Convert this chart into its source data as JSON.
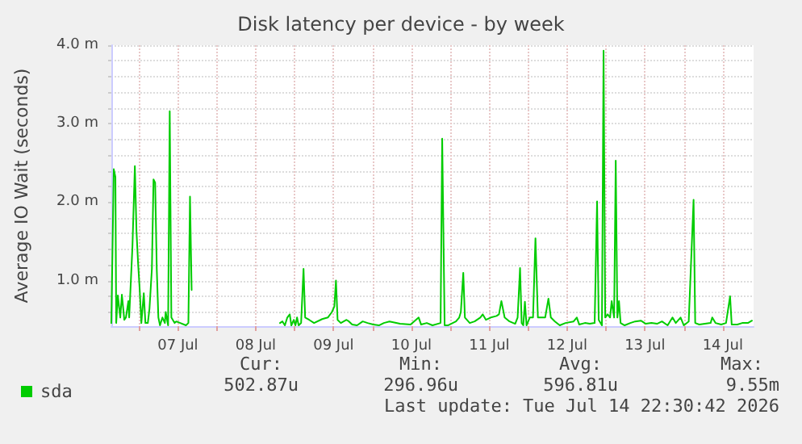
{
  "chart_data": {
    "type": "line",
    "title": "Disk latency per device - by week",
    "ylabel": "Average IO Wait (seconds)",
    "xlim": [
      "2026-07-06T15:30",
      "2026-07-14T21:30"
    ],
    "xticks": [
      {
        "value": "2026-07-07T00:00",
        "label": null
      },
      {
        "value": "2026-07-07T12:00",
        "label": "07 Jul"
      },
      {
        "value": "2026-07-08T00:00",
        "label": null
      },
      {
        "value": "2026-07-08T12:00",
        "label": "08 Jul"
      },
      {
        "value": "2026-07-09T00:00",
        "label": null
      },
      {
        "value": "2026-07-09T12:00",
        "label": "09 Jul"
      },
      {
        "value": "2026-07-10T00:00",
        "label": null
      },
      {
        "value": "2026-07-10T12:00",
        "label": "10 Jul"
      },
      {
        "value": "2026-07-11T00:00",
        "label": null
      },
      {
        "value": "2026-07-11T12:00",
        "label": "11 Jul"
      },
      {
        "value": "2026-07-12T00:00",
        "label": null
      },
      {
        "value": "2026-07-12T12:00",
        "label": "12 Jul"
      },
      {
        "value": "2026-07-13T00:00",
        "label": null
      },
      {
        "value": "2026-07-13T12:00",
        "label": "13 Jul"
      },
      {
        "value": "2026-07-14T00:00",
        "label": null
      },
      {
        "value": "2026-07-14T12:00",
        "label": "14 Jul"
      }
    ],
    "ylim": [
      0.42,
      4.0
    ],
    "yticks": [
      {
        "value": 0.6,
        "label": null
      },
      {
        "value": 0.8,
        "label": null
      },
      {
        "value": 1.0,
        "label": "1.0 m"
      },
      {
        "value": 1.2,
        "label": null
      },
      {
        "value": 1.4,
        "label": null
      },
      {
        "value": 1.6,
        "label": null
      },
      {
        "value": 1.8,
        "label": null
      },
      {
        "value": 2.0,
        "label": "2.0 m"
      },
      {
        "value": 2.2,
        "label": null
      },
      {
        "value": 2.4,
        "label": null
      },
      {
        "value": 2.6,
        "label": null
      },
      {
        "value": 2.8,
        "label": null
      },
      {
        "value": 3.0,
        "label": "3.0 m"
      },
      {
        "value": 3.2,
        "label": null
      },
      {
        "value": 3.4,
        "label": null
      },
      {
        "value": 3.6,
        "label": null
      },
      {
        "value": 3.8,
        "label": null
      },
      {
        "value": 4.0,
        "label": "4.0 m"
      }
    ],
    "grid": true,
    "legend": "bottom left",
    "marker": "none",
    "line_style": "solid",
    "annotations": [
      "Cur:",
      "Min:",
      "Avg:",
      "Max:",
      "502.87u",
      "296.96u",
      "596.81u",
      "9.55m",
      "Last update: Tue Jul 14 22:30:42 2026"
    ],
    "x": [
      "2026-07-06T15:30",
      "2026-07-06T16:15",
      "2026-07-06T16:45",
      "2026-07-06T17:00",
      "2026-07-06T17:30",
      "2026-07-06T18:15",
      "2026-07-06T18:45",
      "2026-07-06T19:30",
      "2026-07-06T20:00",
      "2026-07-06T20:45",
      "2026-07-06T21:00",
      "2026-07-06T22:00",
      "2026-07-06T22:45",
      "2026-07-06T23:15",
      "2026-07-06T23:45",
      "2026-07-07T00:15",
      "2026-07-07T00:45",
      "2026-07-07T01:30",
      "2026-07-07T02:00",
      "2026-07-07T02:45",
      "2026-07-07T03:15",
      "2026-07-07T04:00",
      "2026-07-07T04:30",
      "2026-07-07T05:00",
      "2026-07-07T05:30",
      "2026-07-07T06:00",
      "2026-07-07T06:30",
      "2026-07-07T07:15",
      "2026-07-07T08:00",
      "2026-07-07T08:15",
      "2026-07-07T09:00",
      "2026-07-07T09:30",
      "2026-07-07T10:00",
      "2026-07-07T11:00",
      "2026-07-07T11:30",
      "2026-07-07T12:45",
      "2026-07-07T14:30",
      "2026-07-07T15:15",
      "2026-07-07T15:45",
      "2026-07-07T16:15",
      "2026-07-07T16:30",
      "2026-07-07T17:00",
      "2026-07-08T19:30",
      "2026-07-08T20:15",
      "2026-07-08T21:00",
      "2026-07-08T21:45",
      "2026-07-08T22:30",
      "2026-07-08T23:00",
      "2026-07-08T23:45",
      "2026-07-09T00:15",
      "2026-07-09T00:45",
      "2026-07-09T01:15",
      "2026-07-09T02:00",
      "2026-07-09T02:45",
      "2026-07-09T03:15",
      "2026-07-09T04:30",
      "2026-07-09T06:00",
      "2026-07-09T08:30",
      "2026-07-09T10:15",
      "2026-07-09T11:30",
      "2026-07-09T12:15",
      "2026-07-09T12:45",
      "2026-07-09T13:15",
      "2026-07-09T14:15",
      "2026-07-09T16:00",
      "2026-07-09T16:45",
      "2026-07-09T17:45",
      "2026-07-09T19:15",
      "2026-07-09T21:00",
      "2026-07-09T22:30",
      "2026-07-10T00:15",
      "2026-07-10T02:00",
      "2026-07-10T03:30",
      "2026-07-10T05:15",
      "2026-07-10T08:30",
      "2026-07-10T11:45",
      "2026-07-10T14:15",
      "2026-07-10T15:00",
      "2026-07-10T16:45",
      "2026-07-10T18:30",
      "2026-07-10T21:00",
      "2026-07-10T21:30",
      "2026-07-10T22:15",
      "2026-07-10T23:15",
      "2026-07-11T00:45",
      "2026-07-11T01:45",
      "2026-07-11T02:45",
      "2026-07-11T03:15",
      "2026-07-11T04:00",
      "2026-07-11T04:30",
      "2026-07-11T06:00",
      "2026-07-11T07:30",
      "2026-07-11T09:15",
      "2026-07-11T10:00",
      "2026-07-11T11:00",
      "2026-07-11T12:30",
      "2026-07-11T14:15",
      "2026-07-11T15:00",
      "2026-07-11T15:45",
      "2026-07-11T16:45",
      "2026-07-11T18:15",
      "2026-07-11T20:00",
      "2026-07-11T20:45",
      "2026-07-11T21:30",
      "2026-07-11T22:00",
      "2026-07-11T22:30",
      "2026-07-11T23:00",
      "2026-07-11T23:30",
      "2026-07-12T00:30",
      "2026-07-12T01:30",
      "2026-07-12T02:15",
      "2026-07-12T03:00",
      "2026-07-12T04:15",
      "2026-07-12T05:15",
      "2026-07-12T06:15",
      "2026-07-12T07:00",
      "2026-07-12T08:15",
      "2026-07-12T09:45",
      "2026-07-12T11:30",
      "2026-07-12T14:00",
      "2026-07-12T15:00",
      "2026-07-12T15:45",
      "2026-07-12T17:30",
      "2026-07-12T19:00",
      "2026-07-12T20:30",
      "2026-07-12T21:15",
      "2026-07-12T21:45",
      "2026-07-12T22:45",
      "2026-07-12T23:15",
      "2026-07-12T23:45",
      "2026-07-13T00:30",
      "2026-07-13T01:15",
      "2026-07-13T01:45",
      "2026-07-13T02:30",
      "2026-07-13T03:00",
      "2026-07-13T03:30",
      "2026-07-13T04:00",
      "2026-07-13T04:30",
      "2026-07-13T05:45",
      "2026-07-13T07:30",
      "2026-07-13T09:00",
      "2026-07-13T10:45",
      "2026-07-13T12:15",
      "2026-07-13T14:00",
      "2026-07-13T15:45",
      "2026-07-13T17:15",
      "2026-07-13T19:00",
      "2026-07-13T20:30",
      "2026-07-13T21:30",
      "2026-07-13T23:00",
      "2026-07-14T00:00",
      "2026-07-14T01:30",
      "2026-07-14T03:00",
      "2026-07-14T03:30",
      "2026-07-14T04:45",
      "2026-07-14T06:30",
      "2026-07-14T08:15",
      "2026-07-14T08:45",
      "2026-07-14T09:45",
      "2026-07-14T11:30",
      "2026-07-14T13:00",
      "2026-07-14T14:15",
      "2026-07-14T14:45",
      "2026-07-14T16:30",
      "2026-07-14T18:00",
      "2026-07-14T19:45",
      "2026-07-14T21:00"
    ],
    "series": [
      {
        "name": "sda",
        "color": "#00cc00",
        "values": [
          0.46,
          2.42,
          2.32,
          0.46,
          0.81,
          0.53,
          0.82,
          0.5,
          0.53,
          0.74,
          0.53,
          1.43,
          2.46,
          1.63,
          1.22,
          0.88,
          0.46,
          0.84,
          0.46,
          0.46,
          0.64,
          1.15,
          2.29,
          2.25,
          1.15,
          0.53,
          0.43,
          0.53,
          0.46,
          0.6,
          0.43,
          3.16,
          0.53,
          0.46,
          0.48,
          0.46,
          0.43,
          0.46,
          2.07,
          0.88,
          0.88,
          null,
          0.46,
          0.48,
          0.43,
          0.53,
          0.57,
          0.43,
          0.5,
          0.43,
          0.53,
          0.43,
          0.46,
          1.15,
          0.53,
          0.5,
          0.46,
          0.51,
          0.53,
          0.6,
          0.67,
          1.0,
          0.5,
          0.46,
          0.5,
          0.48,
          0.44,
          0.43,
          0.48,
          0.46,
          0.44,
          0.43,
          0.46,
          0.48,
          0.45,
          0.44,
          0.53,
          0.44,
          0.46,
          0.43,
          0.46,
          2.81,
          0.43,
          0.43,
          0.46,
          0.48,
          0.53,
          0.6,
          1.1,
          0.53,
          0.46,
          0.48,
          0.53,
          0.57,
          0.5,
          0.53,
          0.55,
          0.57,
          0.74,
          0.53,
          0.48,
          0.45,
          0.53,
          1.16,
          0.46,
          0.43,
          0.73,
          0.43,
          0.53,
          0.53,
          1.54,
          0.53,
          0.53,
          0.53,
          0.77,
          0.53,
          0.48,
          0.43,
          0.46,
          0.48,
          0.53,
          0.44,
          0.46,
          0.45,
          0.46,
          2.01,
          0.5,
          0.43,
          3.93,
          0.53,
          0.57,
          0.53,
          0.74,
          0.53,
          2.53,
          0.53,
          0.74,
          0.46,
          0.43,
          0.46,
          0.48,
          0.49,
          0.45,
          0.46,
          0.45,
          0.48,
          0.43,
          0.53,
          0.46,
          0.53,
          0.43,
          0.48,
          2.03,
          0.46,
          0.44,
          0.45,
          0.46,
          0.53,
          0.46,
          0.44,
          0.46,
          0.8,
          0.44,
          0.44,
          0.46,
          0.46,
          0.49
        ]
      }
    ]
  }
}
